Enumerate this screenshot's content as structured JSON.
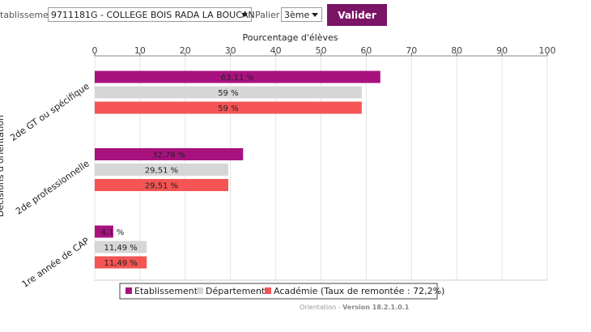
{
  "toolbar": {
    "etab_label": "tablissement",
    "etab_value": "9711181G - COLLEGE BOIS RADA LA BOUCAN",
    "palier_label": "Palier",
    "palier_value": "3ème",
    "validate_label": "Valider"
  },
  "chart_data": {
    "type": "bar",
    "orientation": "horizontal",
    "xlabel": "Pourcentage d'élèves",
    "ylabel": "Décisions d'orientation",
    "xlim": [
      0,
      100
    ],
    "xticks": [
      0,
      10,
      20,
      30,
      40,
      50,
      60,
      70,
      80,
      90,
      100
    ],
    "grid": true,
    "legend_position": "bottom",
    "categories": [
      "2de GT ou spécifique",
      "2de professionnelle",
      "1re année de CAP"
    ],
    "series": [
      {
        "name": "Etablissement",
        "color": "#a8127e",
        "values": [
          63.11,
          32.79,
          4.1
        ],
        "labels": [
          "63,11 %",
          "32,79 %",
          "4,1 %"
        ]
      },
      {
        "name": "Département",
        "color": "#d6d6d6",
        "values": [
          59,
          29.51,
          11.49
        ],
        "labels": [
          "59 %",
          "29,51 %",
          "11,49 %"
        ]
      },
      {
        "name": "Académie (Taux de remontée : 72,2%)",
        "color": "#f45454",
        "values": [
          59,
          29.51,
          11.49
        ],
        "labels": [
          "59 %",
          "29,51 %",
          "11,49 %"
        ]
      }
    ]
  },
  "footer": {
    "prefix": "Orientation - ",
    "version": "Version 18.2.1.0.1"
  }
}
